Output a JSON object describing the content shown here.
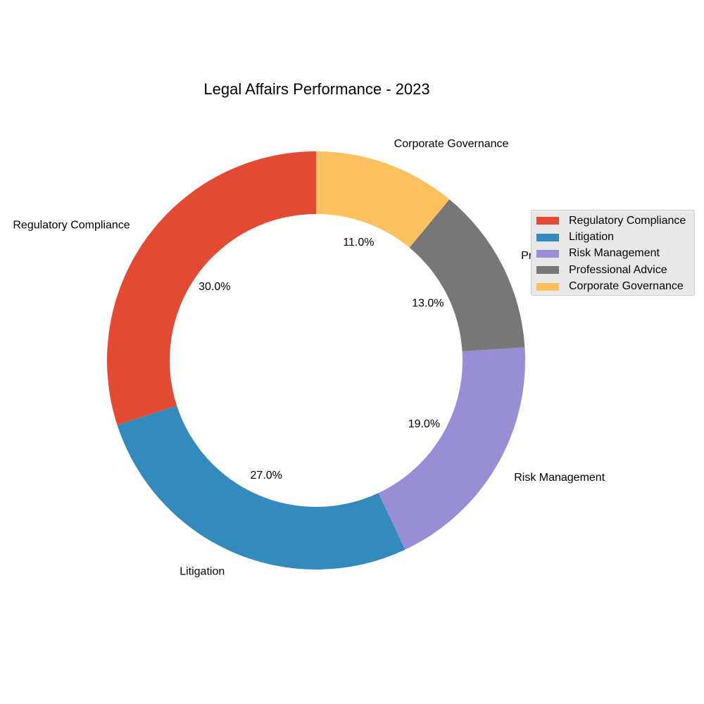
{
  "chart_data": {
    "type": "pie",
    "variant": "donut",
    "title": "Legal Affairs Performance - 2023",
    "categories": [
      "Regulatory Compliance",
      "Litigation",
      "Risk Management",
      "Professional Advice",
      "Corporate Governance"
    ],
    "values": [
      30.0,
      27.0,
      19.0,
      13.0,
      11.0
    ],
    "percent_labels": [
      "30.0%",
      "27.0%",
      "19.0%",
      "13.0%",
      "11.0%"
    ],
    "colors": [
      "#E24A33",
      "#348ABD",
      "#988ED5",
      "#777777",
      "#FBC15E"
    ],
    "start_angle": "top",
    "direction": "counterclockwise",
    "legend": {
      "placement": "right",
      "entries": [
        "Regulatory Compliance",
        "Litigation",
        "Risk Management",
        "Professional Advice",
        "Corporate Governance"
      ]
    }
  }
}
